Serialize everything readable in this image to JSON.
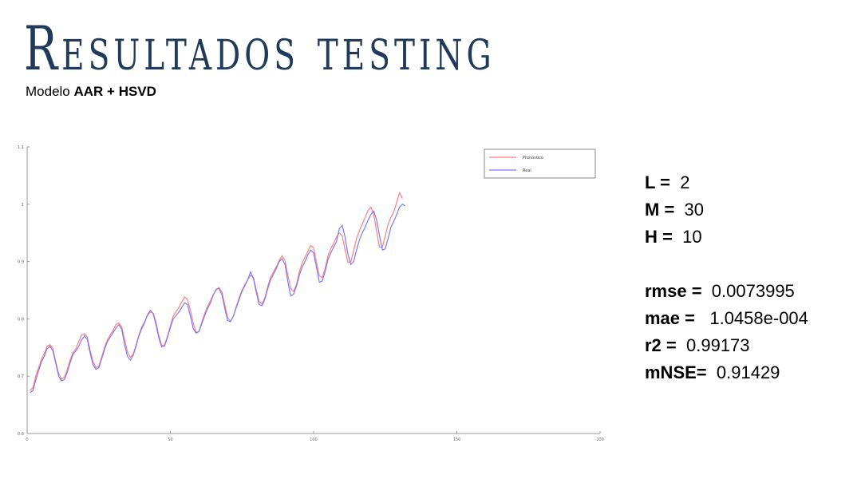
{
  "header": {
    "title": "Resultados testing",
    "subtitle_prefix": "Modelo ",
    "subtitle_bold": "AAR + HSVD"
  },
  "metrics_params": [
    {
      "key": "L =",
      "value": "2"
    },
    {
      "key": "M =",
      "value": "30"
    },
    {
      "key": "H =",
      "value": "10"
    }
  ],
  "metrics_errors": [
    {
      "key": "rmse =",
      "value": "0.0073995"
    },
    {
      "key": "mae =",
      "value": " 1.0458e-004"
    },
    {
      "key": "r2 =",
      "value": "0.99173"
    },
    {
      "key": "mNSE=",
      "value": "0.91429"
    }
  ],
  "chart_data": {
    "type": "line",
    "xlim": [
      0,
      200
    ],
    "ylim": [
      0.6,
      1.1
    ],
    "xticks": [
      0,
      50,
      100,
      150,
      200
    ],
    "yticks": [
      0.6,
      0.7,
      0.8,
      0.9,
      1.0,
      1.1
    ],
    "xtick_labels": [
      "0",
      "50",
      "100",
      "150",
      "200"
    ],
    "ytick_labels": [
      "0.6",
      "0.7",
      "0.8",
      "0.9",
      "1",
      "1.1"
    ],
    "grid": false,
    "legend_position": "top-right",
    "series": [
      {
        "name": "Pronóstico",
        "color": "#ff7f7f",
        "values": [
          0.675,
          0.68,
          0.7,
          0.715,
          0.73,
          0.74,
          0.752,
          0.755,
          0.748,
          0.725,
          0.705,
          0.695,
          0.698,
          0.712,
          0.728,
          0.741,
          0.748,
          0.76,
          0.772,
          0.774,
          0.768,
          0.745,
          0.725,
          0.715,
          0.718,
          0.733,
          0.75,
          0.763,
          0.772,
          0.78,
          0.79,
          0.793,
          0.786,
          0.764,
          0.743,
          0.733,
          0.738,
          0.754,
          0.772,
          0.786,
          0.795,
          0.806,
          0.812,
          0.81,
          0.794,
          0.771,
          0.753,
          0.755,
          0.77,
          0.788,
          0.805,
          0.813,
          0.82,
          0.83,
          0.838,
          0.834,
          0.815,
          0.792,
          0.776,
          0.778,
          0.795,
          0.81,
          0.822,
          0.832,
          0.843,
          0.85,
          0.855,
          0.847,
          0.825,
          0.802,
          0.796,
          0.805,
          0.822,
          0.837,
          0.85,
          0.86,
          0.868,
          0.876,
          0.872,
          0.851,
          0.83,
          0.826,
          0.837,
          0.857,
          0.873,
          0.882,
          0.891,
          0.902,
          0.91,
          0.902,
          0.876,
          0.853,
          0.848,
          0.86,
          0.882,
          0.897,
          0.908,
          0.918,
          0.928,
          0.924,
          0.899,
          0.875,
          0.872,
          0.888,
          0.909,
          0.922,
          0.932,
          0.943,
          0.95,
          0.945,
          0.92,
          0.898,
          0.9,
          0.92,
          0.94,
          0.954,
          0.965,
          0.977,
          0.989,
          0.995,
          0.982,
          0.952,
          0.925,
          0.925,
          0.945,
          0.965,
          0.977,
          0.987,
          1.003,
          1.02,
          1.01
        ]
      },
      {
        "name": "Real",
        "color": "#7a7aff",
        "values": [
          0.671,
          0.675,
          0.693,
          0.71,
          0.725,
          0.735,
          0.748,
          0.752,
          0.744,
          0.722,
          0.7,
          0.692,
          0.694,
          0.707,
          0.723,
          0.738,
          0.744,
          0.752,
          0.763,
          0.77,
          0.764,
          0.74,
          0.72,
          0.712,
          0.715,
          0.73,
          0.746,
          0.76,
          0.768,
          0.776,
          0.784,
          0.79,
          0.782,
          0.755,
          0.735,
          0.728,
          0.736,
          0.752,
          0.77,
          0.783,
          0.793,
          0.807,
          0.815,
          0.809,
          0.789,
          0.766,
          0.751,
          0.753,
          0.768,
          0.785,
          0.8,
          0.806,
          0.812,
          0.82,
          0.828,
          0.825,
          0.805,
          0.783,
          0.775,
          0.778,
          0.792,
          0.806,
          0.818,
          0.828,
          0.842,
          0.852,
          0.853,
          0.842,
          0.818,
          0.797,
          0.795,
          0.805,
          0.82,
          0.834,
          0.848,
          0.858,
          0.868,
          0.882,
          0.87,
          0.846,
          0.825,
          0.823,
          0.835,
          0.853,
          0.868,
          0.878,
          0.888,
          0.9,
          0.905,
          0.895,
          0.865,
          0.84,
          0.843,
          0.857,
          0.876,
          0.89,
          0.9,
          0.912,
          0.92,
          0.915,
          0.89,
          0.864,
          0.866,
          0.882,
          0.903,
          0.915,
          0.925,
          0.935,
          0.958,
          0.963,
          0.942,
          0.912,
          0.895,
          0.9,
          0.92,
          0.938,
          0.95,
          0.96,
          0.972,
          0.982,
          0.988,
          0.972,
          0.945,
          0.92,
          0.922,
          0.94,
          0.96,
          0.97,
          0.982,
          0.995,
          1.0,
          0.997
        ]
      }
    ]
  }
}
